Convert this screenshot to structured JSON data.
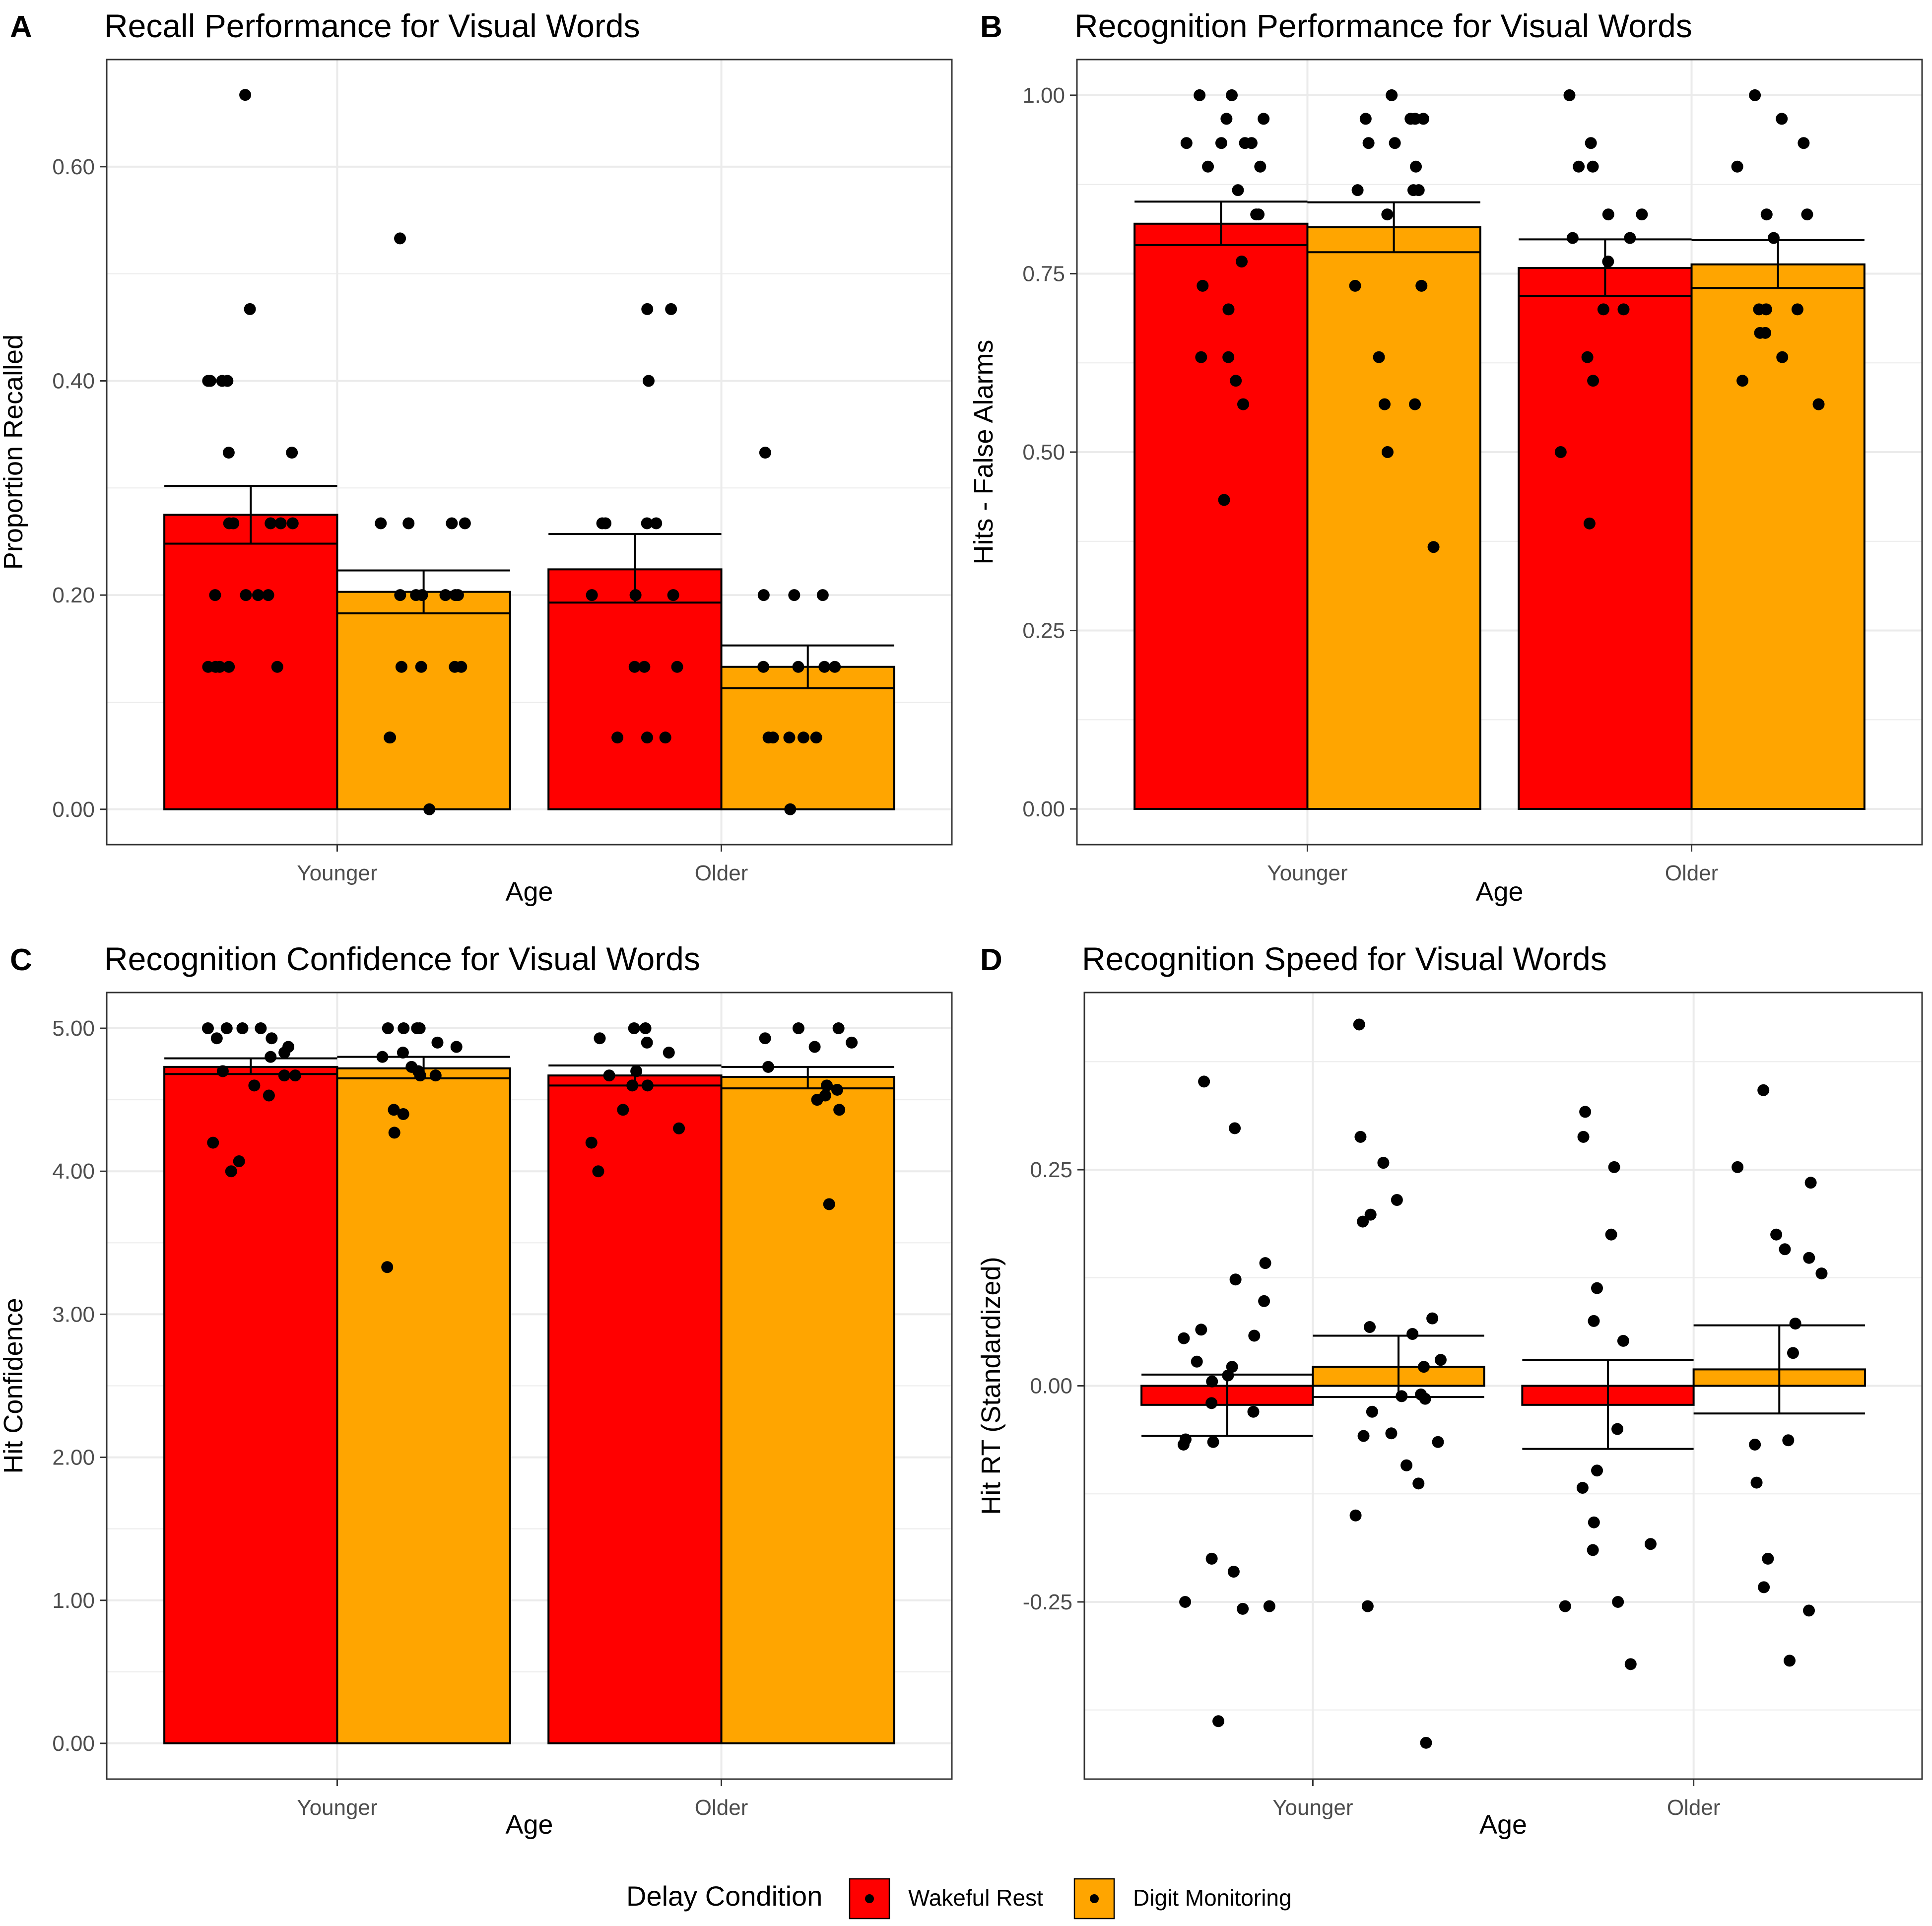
{
  "chart_data": [
    {
      "panel_label": "A",
      "type": "bar",
      "title": "Recall Performance for Visual Words",
      "xlabel": "Age",
      "ylabel": "Proportion Recalled",
      "categories": [
        "Younger",
        "Older"
      ],
      "ylim": [
        -0.033,
        0.7
      ],
      "yticks": [
        0.0,
        0.2,
        0.4,
        0.6
      ],
      "ytick_labels": [
        "0.00",
        "0.20",
        "0.40",
        "0.60"
      ],
      "grid": true,
      "series": [
        {
          "name": "Wakeful Rest",
          "values": [
            0.275,
            0.224
          ],
          "error_low": [
            0.248,
            0.193
          ],
          "error_high": [
            0.302,
            0.257
          ],
          "points": [
            [
              0.667,
              0.467,
              0.4,
              0.4,
              0.4,
              0.4,
              0.333,
              0.333,
              0.267,
              0.267,
              0.267,
              0.267,
              0.267,
              0.2,
              0.2,
              0.2,
              0.2,
              0.133,
              0.133,
              0.133,
              0.133,
              0.133
            ],
            [
              0.467,
              0.467,
              0.4,
              0.267,
              0.267,
              0.267,
              0.267,
              0.2,
              0.2,
              0.2,
              0.133,
              0.133,
              0.133,
              0.067,
              0.067,
              0.067
            ]
          ]
        },
        {
          "name": "Digit Monitoring",
          "values": [
            0.203,
            0.133
          ],
          "error_low": [
            0.183,
            0.113
          ],
          "error_high": [
            0.223,
            0.153
          ],
          "points": [
            [
              0.533,
              0.267,
              0.267,
              0.267,
              0.267,
              0.2,
              0.2,
              0.2,
              0.2,
              0.2,
              0.2,
              0.133,
              0.133,
              0.133,
              0.133,
              0.067,
              0.067,
              0.0
            ],
            [
              0.333,
              0.2,
              0.2,
              0.2,
              0.133,
              0.133,
              0.133,
              0.133,
              0.067,
              0.067,
              0.067,
              0.067,
              0.067,
              0.0
            ]
          ]
        }
      ]
    },
    {
      "panel_label": "B",
      "type": "bar",
      "title": "Recognition Performance for Visual Words",
      "xlabel": "Age",
      "ylabel": "Hits - False Alarms",
      "categories": [
        "Younger",
        "Older"
      ],
      "ylim": [
        -0.05,
        1.05
      ],
      "yticks": [
        0.0,
        0.25,
        0.5,
        0.75,
        1.0
      ],
      "ytick_labels": [
        "0.00",
        "0.25",
        "0.50",
        "0.75",
        "1.00"
      ],
      "grid": true,
      "series": [
        {
          "name": "Wakeful Rest",
          "values": [
            0.82,
            0.758
          ],
          "error_low": [
            0.79,
            0.719
          ],
          "error_high": [
            0.851,
            0.798
          ],
          "points": [
            [
              1.0,
              1.0,
              0.967,
              0.967,
              0.933,
              0.933,
              0.933,
              0.933,
              0.9,
              0.9,
              0.867,
              0.833,
              0.833,
              0.767,
              0.733,
              0.7,
              0.633,
              0.633,
              0.6,
              0.567,
              0.433
            ],
            [
              1.0,
              0.933,
              0.9,
              0.9,
              0.833,
              0.833,
              0.8,
              0.8,
              0.767,
              0.7,
              0.7,
              0.633,
              0.6,
              0.5,
              0.4
            ]
          ]
        },
        {
          "name": "Digit Monitoring",
          "values": [
            0.815,
            0.763
          ],
          "error_low": [
            0.78,
            0.73
          ],
          "error_high": [
            0.85,
            0.797
          ],
          "points": [
            [
              1.0,
              0.967,
              0.967,
              0.967,
              0.967,
              0.933,
              0.933,
              0.9,
              0.867,
              0.867,
              0.867,
              0.833,
              0.733,
              0.733,
              0.633,
              0.567,
              0.567,
              0.5,
              0.367
            ],
            [
              1.0,
              0.967,
              0.933,
              0.9,
              0.833,
              0.833,
              0.8,
              0.7,
              0.7,
              0.7,
              0.667,
              0.667,
              0.633,
              0.6,
              0.567
            ]
          ]
        }
      ]
    },
    {
      "panel_label": "C",
      "type": "bar",
      "title": "Recognition Confidence for Visual Words",
      "xlabel": "Age",
      "ylabel": "Hit Confidence",
      "categories": [
        "Younger",
        "Older"
      ],
      "ylim": [
        -0.25,
        5.25
      ],
      "yticks": [
        0,
        1,
        2,
        3,
        4,
        5
      ],
      "ytick_labels": [
        "0.00",
        "1.00",
        "2.00",
        "3.00",
        "4.00",
        "5.00"
      ],
      "grid": true,
      "series": [
        {
          "name": "Wakeful Rest",
          "values": [
            4.73,
            4.67
          ],
          "error_low": [
            4.68,
            4.6
          ],
          "error_high": [
            4.79,
            4.74
          ],
          "points": [
            [
              5.0,
              5.0,
              5.0,
              5.0,
              4.93,
              4.93,
              4.87,
              4.83,
              4.8,
              4.7,
              4.67,
              4.67,
              4.6,
              4.53,
              4.2,
              4.07,
              4.0
            ],
            [
              5.0,
              5.0,
              4.93,
              4.9,
              4.83,
              4.7,
              4.67,
              4.6,
              4.6,
              4.43,
              4.3,
              4.2,
              4.0
            ]
          ]
        },
        {
          "name": "Digit Monitoring",
          "values": [
            4.72,
            4.66
          ],
          "error_low": [
            4.65,
            4.58
          ],
          "error_high": [
            4.8,
            4.73
          ],
          "points": [
            [
              5.0,
              5.0,
              5.0,
              5.0,
              4.9,
              4.87,
              4.83,
              4.8,
              4.73,
              4.7,
              4.67,
              4.67,
              4.43,
              4.4,
              4.27,
              3.33
            ],
            [
              5.0,
              5.0,
              4.93,
              4.9,
              4.87,
              4.73,
              4.6,
              4.57,
              4.53,
              4.5,
              4.43,
              3.77
            ]
          ]
        }
      ]
    },
    {
      "panel_label": "D",
      "type": "bar",
      "title": "Recognition Speed for Visual Words",
      "xlabel": "Age",
      "ylabel": "Hit RT (Standardized)",
      "categories": [
        "Younger",
        "Older"
      ],
      "ylim": [
        -0.455,
        0.455
      ],
      "yticks": [
        -0.25,
        0.0,
        0.25
      ],
      "ytick_labels": [
        "-0.25",
        "0.00",
        "0.25"
      ],
      "grid": true,
      "series": [
        {
          "name": "Wakeful Rest",
          "values": [
            -0.022,
            -0.022
          ],
          "error_low": [
            -0.058,
            -0.073
          ],
          "error_high": [
            0.013,
            0.03
          ],
          "points": [
            [
              0.352,
              0.298,
              0.142,
              0.123,
              0.098,
              0.065,
              0.058,
              0.055,
              0.028,
              0.022,
              0.012,
              0.005,
              -0.02,
              -0.03,
              -0.062,
              -0.065,
              -0.068,
              -0.2,
              -0.215,
              -0.25,
              -0.255,
              -0.258,
              -0.388
            ],
            [
              0.317,
              0.288,
              0.253,
              0.175,
              0.113,
              0.075,
              0.052,
              -0.05,
              -0.098,
              -0.118,
              -0.158,
              -0.183,
              -0.19,
              -0.25,
              -0.255,
              -0.322
            ]
          ]
        },
        {
          "name": "Digit Monitoring",
          "values": [
            0.022,
            0.019
          ],
          "error_low": [
            -0.013,
            -0.032
          ],
          "error_high": [
            0.058,
            0.07
          ],
          "points": [
            [
              0.418,
              0.288,
              0.258,
              0.215,
              0.198,
              0.19,
              0.078,
              0.068,
              0.06,
              0.03,
              0.022,
              -0.01,
              -0.012,
              -0.015,
              -0.03,
              -0.055,
              -0.058,
              -0.065,
              -0.092,
              -0.113,
              -0.15,
              -0.255,
              -0.413
            ],
            [
              0.342,
              0.253,
              0.235,
              0.175,
              0.158,
              0.148,
              0.13,
              0.072,
              0.038,
              -0.063,
              -0.068,
              -0.112,
              -0.2,
              -0.233,
              -0.26,
              -0.318
            ]
          ]
        }
      ]
    }
  ],
  "legend": {
    "title": "Delay Condition",
    "position": "bottom",
    "entries": [
      {
        "label": "Wakeful Rest",
        "color": "#FF0000"
      },
      {
        "label": "Digit Monitoring",
        "color": "#FFA500"
      }
    ]
  },
  "colors": {
    "wakeful_rest": "#FF0000",
    "digit_monitoring": "#FFA500",
    "grid": "#EBEBEB",
    "panel_border": "#333333",
    "tick_text": "#4D4D4D",
    "point": "#000000"
  }
}
